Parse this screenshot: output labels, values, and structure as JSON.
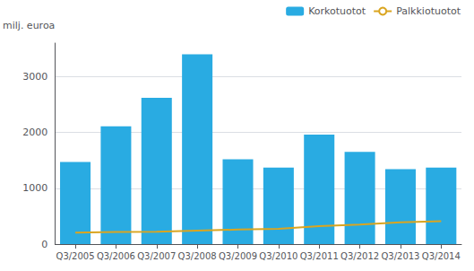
{
  "chart_data": {
    "type": "bar",
    "categories": [
      "Q3/2005",
      "Q3/2006",
      "Q3/2007",
      "Q3/2008",
      "Q3/2009",
      "Q3/2010",
      "Q3/2011",
      "Q3/2012",
      "Q3/2013",
      "Q3/2014"
    ],
    "series": [
      {
        "name": "Korkotuotot",
        "type": "bar",
        "color": "#29ABE2",
        "values": [
          1470,
          2110,
          2620,
          3400,
          1520,
          1370,
          1960,
          1650,
          1340,
          1370
        ]
      },
      {
        "name": "Palkkiotuotot",
        "type": "line",
        "color": "#DAA520",
        "values": [
          205,
          215,
          220,
          240,
          260,
          275,
          320,
          350,
          390,
          410
        ]
      }
    ],
    "ylabel": "milj. euroa",
    "ylim": [
      0,
      3600
    ],
    "yticks": [
      0,
      1000,
      2000,
      3000
    ],
    "grid": true,
    "legend": "upper right"
  }
}
